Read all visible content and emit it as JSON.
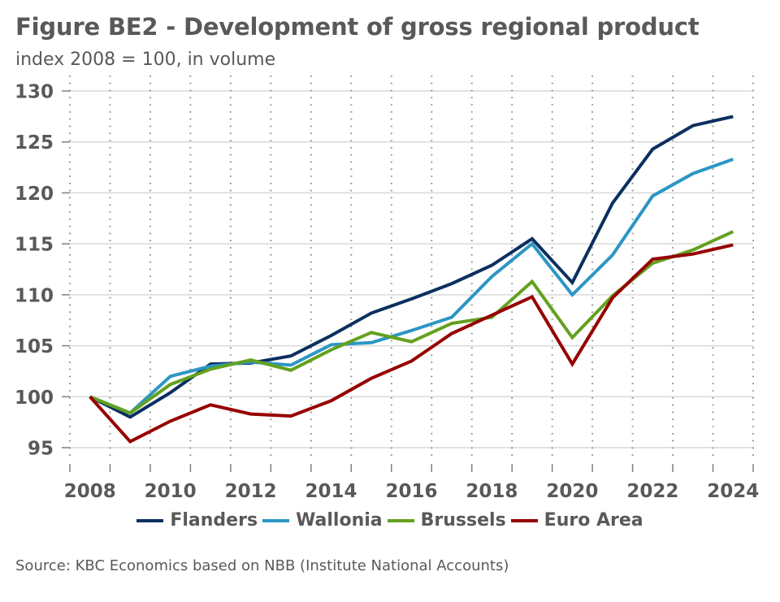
{
  "chart_data": {
    "type": "line",
    "title": "Figure BE2 - Development of gross regional product",
    "subtitle": "index 2008 = 100, in volume",
    "xlabel": "",
    "ylabel": "",
    "x": [
      2008,
      2009,
      2010,
      2011,
      2012,
      2013,
      2014,
      2015,
      2016,
      2017,
      2018,
      2019,
      2020,
      2021,
      2022,
      2023,
      2024
    ],
    "x_tick_labels": [
      "2008",
      "2010",
      "2012",
      "2014",
      "2016",
      "2018",
      "2020",
      "2022",
      "2024"
    ],
    "y_tick_labels": [
      "95",
      "100",
      "105",
      "110",
      "115",
      "120",
      "125",
      "130"
    ],
    "y_ticks": [
      95,
      100,
      105,
      110,
      115,
      120,
      125,
      130
    ],
    "ylim": [
      95,
      130
    ],
    "grid": {
      "horizontal": "solid",
      "vertical": "dotted"
    },
    "legend_position": "bottom",
    "series": [
      {
        "name": "Flanders",
        "color": "#0b2f5f",
        "values": [
          100.0,
          98.0,
          100.4,
          103.2,
          103.3,
          104.0,
          106.0,
          108.2,
          109.6,
          111.1,
          112.9,
          115.5,
          111.2,
          119.0,
          124.3,
          126.6,
          127.5
        ]
      },
      {
        "name": "Wallonia",
        "color": "#2c96c4",
        "values": [
          100.0,
          98.4,
          102.0,
          103.0,
          103.4,
          103.1,
          105.1,
          105.3,
          106.5,
          107.8,
          111.8,
          115.0,
          110.0,
          113.9,
          119.7,
          121.9,
          123.3
        ]
      },
      {
        "name": "Brussels",
        "color": "#63a11f",
        "values": [
          100.0,
          98.4,
          101.2,
          102.7,
          103.6,
          102.6,
          104.6,
          106.3,
          105.4,
          107.2,
          107.8,
          111.3,
          105.8,
          109.9,
          113.1,
          114.4,
          116.2
        ]
      },
      {
        "name": "Euro Area",
        "color": "#960000",
        "values": [
          100.0,
          95.6,
          97.6,
          99.2,
          98.3,
          98.1,
          99.6,
          101.8,
          103.5,
          106.2,
          108.0,
          109.8,
          103.2,
          109.7,
          113.5,
          114.0,
          114.9
        ]
      }
    ],
    "source": "Source: KBC Economics based on NBB (Institute National Accounts)"
  }
}
